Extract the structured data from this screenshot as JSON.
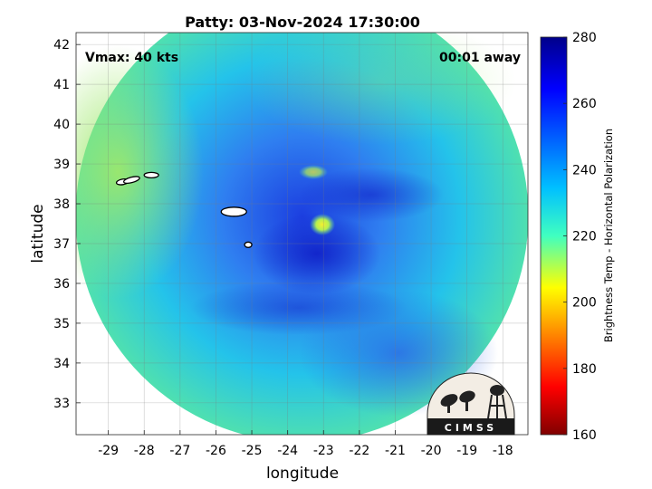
{
  "chart_data": {
    "type": "heatmap",
    "title": "Patty: 03-Nov-2024 17:30:00",
    "xlabel": "longitude",
    "ylabel": "latitude",
    "xlim": [
      -29.9,
      -17.3
    ],
    "ylim": [
      32.2,
      42.3
    ],
    "x_ticks": [
      -29,
      -28,
      -27,
      -26,
      -25,
      -24,
      -23,
      -22,
      -21,
      -20,
      -19,
      -18
    ],
    "y_ticks": [
      33,
      34,
      35,
      36,
      37,
      38,
      39,
      40,
      41,
      42
    ],
    "x_tick_labels": [
      "-29",
      "-28",
      "-27",
      "-26",
      "-25",
      "-24",
      "-23",
      "-22",
      "-21",
      "-20",
      "-19",
      "-18"
    ],
    "y_tick_labels": [
      "33",
      "34",
      "35",
      "36",
      "37",
      "38",
      "39",
      "40",
      "41",
      "42"
    ],
    "grid": true,
    "colorbar": {
      "label": "Brightness Temp - Horizontal Polarization",
      "range": [
        160,
        280
      ],
      "ticks": [
        160,
        180,
        200,
        220,
        240,
        260,
        280
      ],
      "tick_labels": [
        "160",
        "180",
        "200",
        "220",
        "240",
        "260",
        "280"
      ],
      "colormap": "jet"
    },
    "annotations": {
      "vmax": "Vmax: 40 kts",
      "time_away": "00:01 away"
    },
    "storm_center": {
      "lon": -23.0,
      "lat": 37.5
    },
    "swath_center": {
      "lon": -23.6,
      "lat": 37.7
    },
    "islands": [
      {
        "lon": -28.6,
        "lat": 38.55
      },
      {
        "lon": -28.35,
        "lat": 38.6
      },
      {
        "lon": -27.8,
        "lat": 38.72
      },
      {
        "lon": -25.5,
        "lat": 37.8
      },
      {
        "lon": -25.1,
        "lat": 36.97
      }
    ]
  },
  "logo": {
    "text": "CIMSS"
  }
}
